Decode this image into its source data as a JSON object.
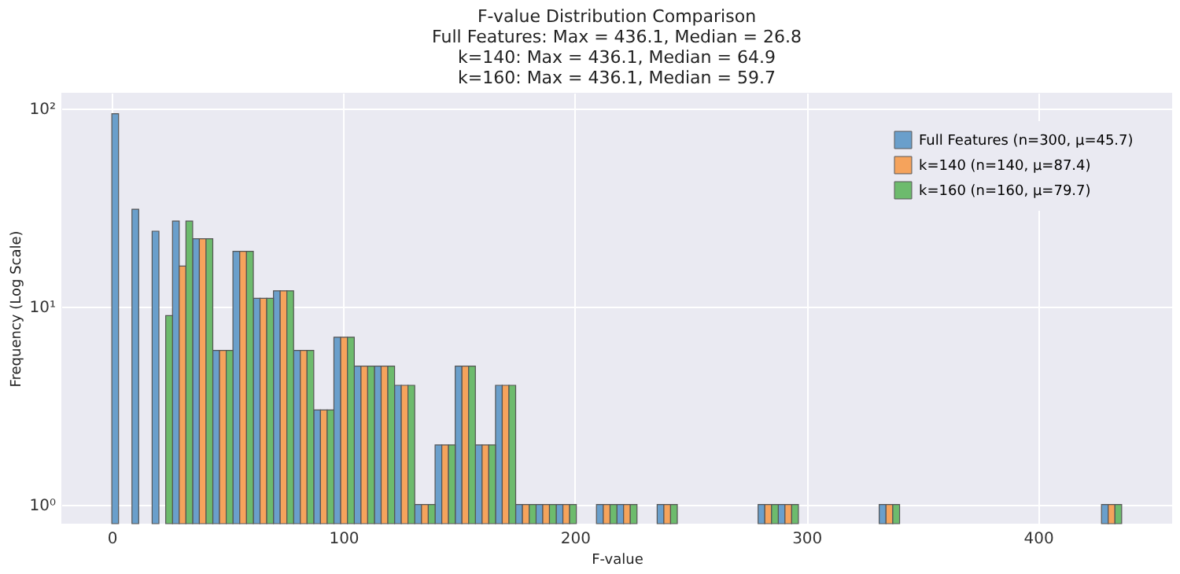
{
  "chart_data": {
    "type": "histogram",
    "title": "F-value Distribution Comparison\nFull Features: Max = 436.1, Median = 26.8\nk=140: Max = 436.1, Median = 64.9\nk=160: Max = 436.1, Median = 59.7",
    "xlabel": "F-value",
    "ylabel": "Frequency (Log Scale)",
    "bins": [
      0,
      8.7,
      17.4,
      26.2,
      34.9,
      43.6,
      52.3,
      61.1,
      69.8,
      78.5,
      87.2,
      95.9,
      104.7,
      113.4,
      122.1,
      130.8,
      139.6,
      148.3,
      157.0,
      165.7,
      174.4,
      183.2,
      191.9,
      200.6,
      209.3,
      218.1,
      226.8,
      235.5,
      244.2,
      252.9,
      261.7,
      270.4,
      279.1,
      287.8,
      296.5,
      305.3,
      314.0,
      322.7,
      331.4,
      340.2,
      348.9,
      357.6,
      366.3,
      375.0,
      383.8,
      392.5,
      401.2,
      409.9,
      418.7,
      427.4,
      436.1
    ],
    "series": [
      {
        "name": "Full Features (n=300, μ=45.7)",
        "color": "#6a9fcb",
        "values": [
          94,
          31,
          24,
          27,
          22,
          6,
          19,
          11,
          12,
          6,
          3,
          7,
          5,
          5,
          4,
          1,
          2,
          5,
          2,
          4,
          1,
          1,
          1,
          null,
          1,
          1,
          null,
          1,
          null,
          null,
          null,
          null,
          1,
          1,
          null,
          null,
          null,
          null,
          1,
          null,
          null,
          null,
          null,
          null,
          null,
          null,
          null,
          null,
          null,
          1
        ]
      },
      {
        "name": "k=140 (n=140, μ=87.4)",
        "color": "#f5a35c",
        "values": [
          null,
          null,
          null,
          16,
          22,
          6,
          19,
          11,
          12,
          6,
          3,
          7,
          5,
          5,
          4,
          1,
          2,
          5,
          2,
          4,
          1,
          1,
          1,
          null,
          1,
          1,
          null,
          1,
          null,
          null,
          null,
          null,
          1,
          1,
          null,
          null,
          null,
          null,
          1,
          null,
          null,
          null,
          null,
          null,
          null,
          null,
          null,
          null,
          null,
          1
        ]
      },
      {
        "name": "k=160 (n=160, μ=79.7)",
        "color": "#6dbb6d",
        "values": [
          null,
          null,
          9,
          27,
          22,
          6,
          19,
          11,
          12,
          6,
          3,
          7,
          5,
          5,
          4,
          1,
          2,
          5,
          2,
          4,
          1,
          1,
          1,
          null,
          1,
          1,
          null,
          1,
          null,
          null,
          null,
          null,
          1,
          1,
          null,
          null,
          null,
          null,
          1,
          null,
          null,
          null,
          null,
          null,
          null,
          null,
          null,
          null,
          null,
          1
        ]
      }
    ],
    "xlim": [
      -21.8,
      457.9
    ],
    "xticks": [
      0,
      100,
      200,
      300,
      400
    ],
    "ylim": [
      0.8,
      120
    ],
    "yticks": [
      {
        "value": 1,
        "label": "10⁰"
      },
      {
        "value": 10,
        "label": "10¹"
      },
      {
        "value": 100,
        "label": "10²"
      }
    ],
    "log": true,
    "grid": true,
    "legend": "top right"
  }
}
